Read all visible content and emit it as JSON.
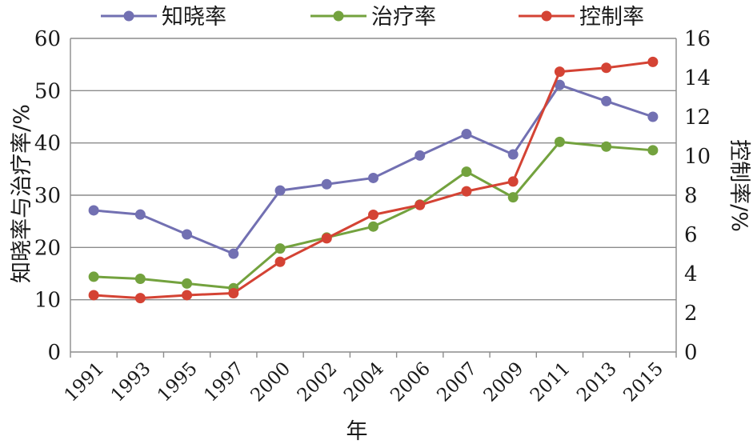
{
  "chart_data": {
    "type": "line",
    "categories": [
      "1991",
      "1993",
      "1995",
      "1997",
      "2000",
      "2002",
      "2004",
      "2006",
      "2007",
      "2009",
      "2011",
      "2013",
      "2015"
    ],
    "xlabel": "年",
    "ylabel": "知晓率与治疗率/%",
    "y2label": "控制率/%",
    "ylim": [
      0,
      60
    ],
    "yticks": [
      0,
      10,
      20,
      30,
      40,
      50,
      60
    ],
    "y2lim": [
      0,
      16
    ],
    "y2ticks": [
      0,
      2,
      4,
      6,
      8,
      10,
      12,
      14,
      16
    ],
    "grid": true,
    "legend": "top",
    "series": [
      {
        "name": "知晓率",
        "axis": "left",
        "color": "#7270b2",
        "values": [
          27.1,
          26.3,
          22.5,
          18.8,
          30.9,
          32.1,
          33.3,
          37.6,
          41.7,
          37.8,
          51.1,
          48.0,
          45.0
        ]
      },
      {
        "name": "治疗率",
        "axis": "left",
        "color": "#73a23e",
        "values": [
          14.4,
          14.0,
          13.1,
          12.2,
          19.8,
          21.9,
          24.0,
          28.2,
          34.5,
          29.6,
          40.2,
          39.3,
          38.6
        ]
      },
      {
        "name": "控制率",
        "axis": "right",
        "color": "#d44334",
        "values": [
          2.9,
          2.75,
          2.9,
          3.0,
          4.6,
          5.8,
          7.0,
          7.5,
          8.2,
          8.7,
          14.3,
          14.5,
          14.8
        ]
      }
    ]
  }
}
